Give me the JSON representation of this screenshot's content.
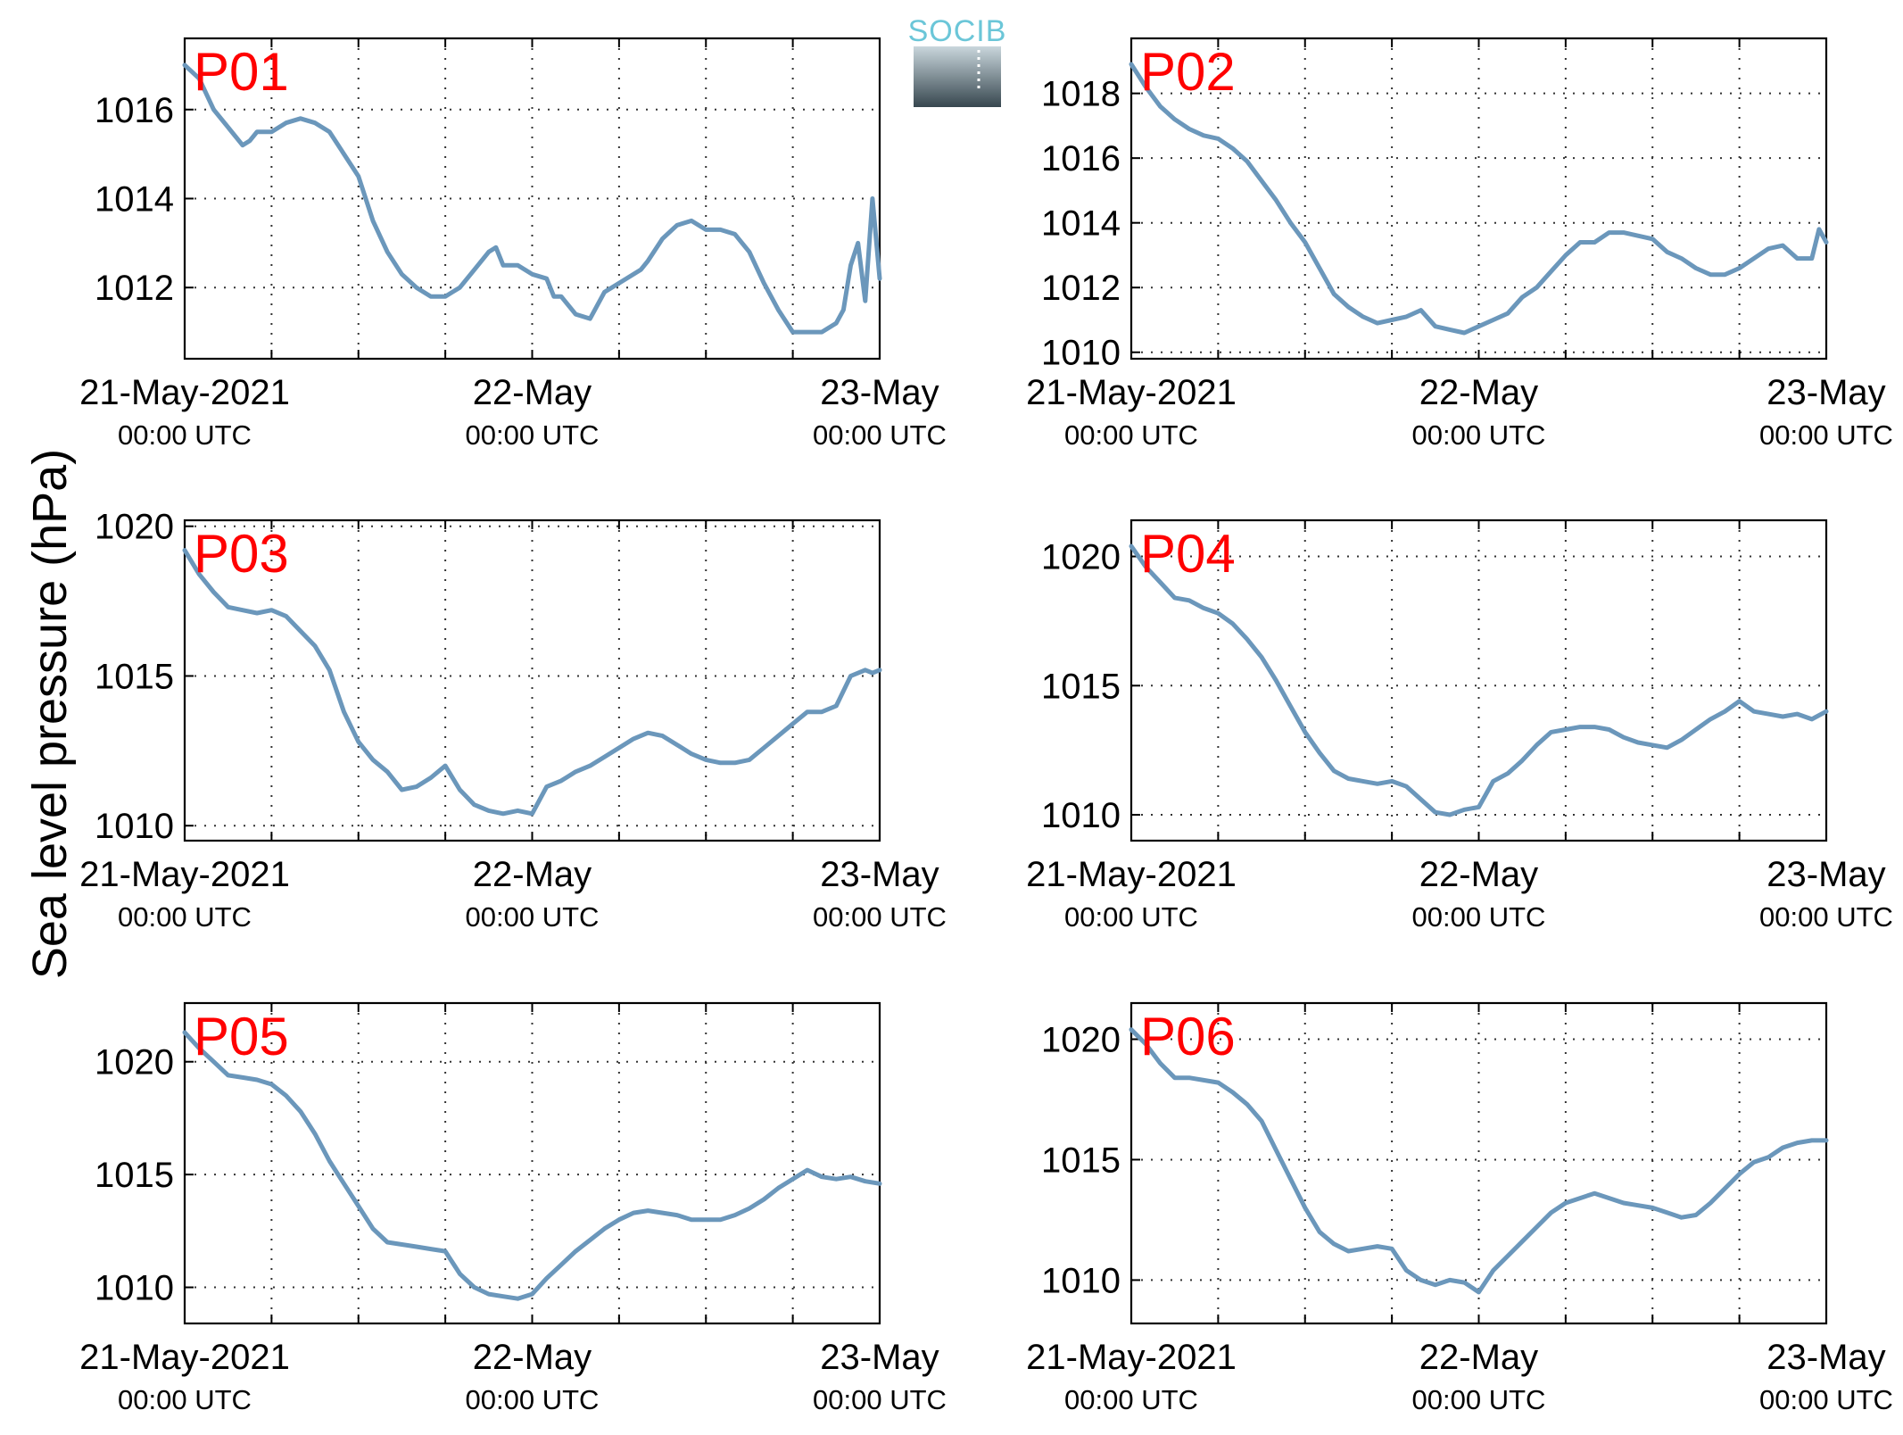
{
  "figure": {
    "ylabel": "Sea level pressure (hPa)",
    "logo_text": "SOCIB"
  },
  "chart_data": [
    {
      "type": "line",
      "label": "P01",
      "x_ticks": [
        {
          "line1": "21-May-2021",
          "line2": "00:00 UTC"
        },
        {
          "line1": "22-May",
          "line2": "00:00 UTC"
        },
        {
          "line1": "23-May",
          "line2": "00:00 UTC"
        }
      ],
      "x_range_hours": [
        0,
        48
      ],
      "ylim": [
        1010.4,
        1017.6
      ],
      "y_ticks": [
        1012,
        1014,
        1016
      ],
      "grid": true,
      "color": "#6b97bb",
      "x": [
        0,
        1,
        2,
        3,
        4,
        4.5,
        5,
        6,
        7,
        8,
        9,
        10,
        11,
        12,
        13,
        14,
        15,
        16,
        17,
        18,
        19,
        20,
        21,
        21.5,
        22,
        23,
        24,
        25,
        25.5,
        26,
        27,
        28,
        29,
        30,
        31,
        31.5,
        32,
        33,
        34,
        35,
        36,
        37,
        38,
        39,
        40,
        41,
        42,
        43,
        43.5,
        44,
        45,
        45.5,
        46,
        46.5,
        47,
        47.5,
        48
      ],
      "values": [
        1017.0,
        1016.7,
        1016.0,
        1015.6,
        1015.2,
        1015.3,
        1015.5,
        1015.5,
        1015.7,
        1015.8,
        1015.7,
        1015.5,
        1015.0,
        1014.5,
        1013.5,
        1012.8,
        1012.3,
        1012.0,
        1011.8,
        1011.8,
        1012.0,
        1012.4,
        1012.8,
        1012.9,
        1012.5,
        1012.5,
        1012.3,
        1012.2,
        1011.8,
        1011.8,
        1011.4,
        1011.3,
        1011.9,
        1012.1,
        1012.3,
        1012.4,
        1012.6,
        1013.1,
        1013.4,
        1013.5,
        1013.3,
        1013.3,
        1013.2,
        1012.8,
        1012.1,
        1011.5,
        1011.0,
        1011.0,
        1011.0,
        1011.0,
        1011.2,
        1011.5,
        1012.5,
        1013.0,
        1011.7,
        1014.0,
        1012.2
      ]
    },
    {
      "type": "line",
      "label": "P02",
      "x_ticks": [
        {
          "line1": "21-May-2021",
          "line2": "00:00 UTC"
        },
        {
          "line1": "22-May",
          "line2": "00:00 UTC"
        },
        {
          "line1": "23-May",
          "line2": "00:00 UTC"
        }
      ],
      "x_range_hours": [
        0,
        48
      ],
      "ylim": [
        1009.8,
        1019.7
      ],
      "y_ticks": [
        1010,
        1012,
        1014,
        1016,
        1018
      ],
      "grid": true,
      "color": "#6b97bb",
      "x": [
        0,
        1,
        2,
        3,
        4,
        5,
        6,
        7,
        8,
        9,
        10,
        11,
        12,
        13,
        14,
        15,
        16,
        17,
        18,
        19,
        20,
        21,
        22,
        23,
        24,
        25,
        26,
        27,
        28,
        29,
        30,
        31,
        32,
        33,
        34,
        35,
        36,
        37,
        38,
        39,
        40,
        41,
        42,
        43,
        44,
        45,
        46,
        47,
        47.5,
        48
      ],
      "values": [
        1018.9,
        1018.2,
        1017.6,
        1017.2,
        1016.9,
        1016.7,
        1016.6,
        1016.3,
        1015.9,
        1015.3,
        1014.7,
        1014.0,
        1013.4,
        1012.6,
        1011.8,
        1011.4,
        1011.1,
        1010.9,
        1011.0,
        1011.1,
        1011.3,
        1010.8,
        1010.7,
        1010.6,
        1010.8,
        1011.0,
        1011.2,
        1011.7,
        1012.0,
        1012.5,
        1013.0,
        1013.4,
        1013.4,
        1013.7,
        1013.7,
        1013.6,
        1013.5,
        1013.1,
        1012.9,
        1012.6,
        1012.4,
        1012.4,
        1012.6,
        1012.9,
        1013.2,
        1013.3,
        1012.9,
        1012.9,
        1013.8,
        1013.4
      ]
    },
    {
      "type": "line",
      "label": "P03",
      "x_ticks": [
        {
          "line1": "21-May-2021",
          "line2": "00:00 UTC"
        },
        {
          "line1": "22-May",
          "line2": "00:00 UTC"
        },
        {
          "line1": "23-May",
          "line2": "00:00 UTC"
        }
      ],
      "x_range_hours": [
        0,
        48
      ],
      "ylim": [
        1009.5,
        1020.2
      ],
      "y_ticks": [
        1010,
        1015,
        1020
      ],
      "grid": true,
      "color": "#6b97bb",
      "x": [
        0,
        1,
        2,
        3,
        4,
        5,
        6,
        7,
        8,
        9,
        10,
        11,
        12,
        13,
        14,
        15,
        16,
        17,
        18,
        19,
        20,
        21,
        22,
        23,
        24,
        25,
        26,
        27,
        28,
        29,
        30,
        31,
        32,
        33,
        34,
        35,
        36,
        37,
        38,
        39,
        40,
        41,
        42,
        43,
        44,
        45,
        46,
        47,
        47.5,
        48
      ],
      "values": [
        1019.2,
        1018.4,
        1017.8,
        1017.3,
        1017.2,
        1017.1,
        1017.2,
        1017.0,
        1016.5,
        1016.0,
        1015.2,
        1013.8,
        1012.8,
        1012.2,
        1011.8,
        1011.2,
        1011.3,
        1011.6,
        1012.0,
        1011.2,
        1010.7,
        1010.5,
        1010.4,
        1010.5,
        1010.4,
        1011.3,
        1011.5,
        1011.8,
        1012.0,
        1012.3,
        1012.6,
        1012.9,
        1013.1,
        1013.0,
        1012.7,
        1012.4,
        1012.2,
        1012.1,
        1012.1,
        1012.2,
        1012.6,
        1013.0,
        1013.4,
        1013.8,
        1013.8,
        1014.0,
        1015.0,
        1015.2,
        1015.1,
        1015.2
      ]
    },
    {
      "type": "line",
      "label": "P04",
      "x_ticks": [
        {
          "line1": "21-May-2021",
          "line2": "00:00 UTC"
        },
        {
          "line1": "22-May",
          "line2": "00:00 UTC"
        },
        {
          "line1": "23-May",
          "line2": "00:00 UTC"
        }
      ],
      "x_range_hours": [
        0,
        48
      ],
      "ylim": [
        1009.0,
        1021.4
      ],
      "y_ticks": [
        1010,
        1015,
        1020
      ],
      "grid": true,
      "color": "#6b97bb",
      "x": [
        0,
        1,
        2,
        3,
        4,
        5,
        6,
        7,
        8,
        9,
        10,
        11,
        12,
        13,
        14,
        15,
        16,
        17,
        18,
        19,
        20,
        21,
        22,
        23,
        24,
        25,
        26,
        27,
        28,
        29,
        30,
        31,
        32,
        33,
        34,
        35,
        36,
        37,
        38,
        39,
        40,
        41,
        42,
        43,
        44,
        45,
        46,
        47,
        48
      ],
      "values": [
        1020.4,
        1019.6,
        1019.0,
        1018.4,
        1018.3,
        1018.0,
        1017.8,
        1017.4,
        1016.8,
        1016.1,
        1015.2,
        1014.2,
        1013.2,
        1012.4,
        1011.7,
        1011.4,
        1011.3,
        1011.2,
        1011.3,
        1011.1,
        1010.6,
        1010.1,
        1010.0,
        1010.2,
        1010.3,
        1011.3,
        1011.6,
        1012.1,
        1012.7,
        1013.2,
        1013.3,
        1013.4,
        1013.4,
        1013.3,
        1013.0,
        1012.8,
        1012.7,
        1012.6,
        1012.9,
        1013.3,
        1013.7,
        1014.0,
        1014.4,
        1014.0,
        1013.9,
        1013.8,
        1013.9,
        1013.7,
        1014.0
      ]
    },
    {
      "type": "line",
      "label": "P05",
      "x_ticks": [
        {
          "line1": "21-May-2021",
          "line2": "00:00 UTC"
        },
        {
          "line1": "22-May",
          "line2": "00:00 UTC"
        },
        {
          "line1": "23-May",
          "line2": "00:00 UTC"
        }
      ],
      "x_range_hours": [
        0,
        48
      ],
      "ylim": [
        1008.4,
        1022.6
      ],
      "y_ticks": [
        1010,
        1015,
        1020
      ],
      "grid": true,
      "color": "#6b97bb",
      "x": [
        0,
        1,
        2,
        3,
        4,
        5,
        6,
        7,
        8,
        9,
        10,
        11,
        12,
        13,
        14,
        15,
        16,
        17,
        18,
        19,
        20,
        21,
        22,
        23,
        24,
        25,
        26,
        27,
        28,
        29,
        30,
        31,
        32,
        33,
        34,
        35,
        36,
        37,
        38,
        39,
        40,
        41,
        42,
        43,
        44,
        45,
        46,
        47,
        48
      ],
      "values": [
        1021.3,
        1020.6,
        1020.0,
        1019.4,
        1019.3,
        1019.2,
        1019.0,
        1018.5,
        1017.8,
        1016.8,
        1015.6,
        1014.6,
        1013.6,
        1012.6,
        1012.0,
        1011.9,
        1011.8,
        1011.7,
        1011.6,
        1010.6,
        1010.0,
        1009.7,
        1009.6,
        1009.5,
        1009.7,
        1010.4,
        1011.0,
        1011.6,
        1012.1,
        1012.6,
        1013.0,
        1013.3,
        1013.4,
        1013.3,
        1013.2,
        1013.0,
        1013.0,
        1013.0,
        1013.2,
        1013.5,
        1013.9,
        1014.4,
        1014.8,
        1015.2,
        1014.9,
        1014.8,
        1014.9,
        1014.7,
        1014.6
      ]
    },
    {
      "type": "line",
      "label": "P06",
      "x_ticks": [
        {
          "line1": "21-May-2021",
          "line2": "00:00 UTC"
        },
        {
          "line1": "22-May",
          "line2": "00:00 UTC"
        },
        {
          "line1": "23-May",
          "line2": "00:00 UTC"
        }
      ],
      "x_range_hours": [
        0,
        48
      ],
      "ylim": [
        1008.2,
        1021.5
      ],
      "y_ticks": [
        1010,
        1015,
        1020
      ],
      "grid": true,
      "color": "#6b97bb",
      "x": [
        0,
        1,
        2,
        3,
        4,
        5,
        6,
        7,
        8,
        9,
        10,
        11,
        12,
        13,
        14,
        15,
        16,
        17,
        18,
        19,
        20,
        21,
        22,
        23,
        24,
        25,
        26,
        27,
        28,
        29,
        30,
        31,
        32,
        33,
        34,
        35,
        36,
        37,
        38,
        39,
        40,
        41,
        42,
        43,
        44,
        45,
        46,
        47,
        48
      ],
      "values": [
        1020.4,
        1019.8,
        1019.0,
        1018.4,
        1018.4,
        1018.3,
        1018.2,
        1017.8,
        1017.3,
        1016.6,
        1015.4,
        1014.2,
        1013.0,
        1012.0,
        1011.5,
        1011.2,
        1011.3,
        1011.4,
        1011.3,
        1010.4,
        1010.0,
        1009.8,
        1010.0,
        1009.9,
        1009.5,
        1010.4,
        1011.0,
        1011.6,
        1012.2,
        1012.8,
        1013.2,
        1013.4,
        1013.6,
        1013.4,
        1013.2,
        1013.1,
        1013.0,
        1012.8,
        1012.6,
        1012.7,
        1013.2,
        1013.8,
        1014.4,
        1014.9,
        1015.1,
        1015.5,
        1015.7,
        1015.8,
        1015.8
      ]
    }
  ]
}
